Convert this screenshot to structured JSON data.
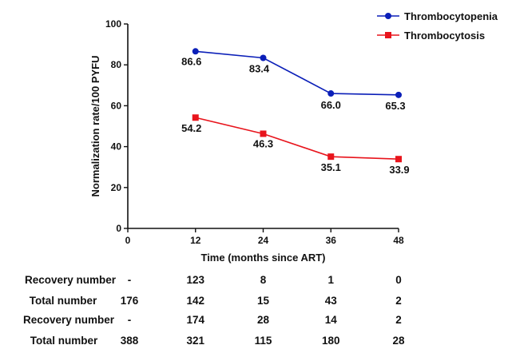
{
  "chart_data": {
    "type": "line",
    "xlabel": "Time (months since ART)",
    "ylabel": "Normalization rate/100 PYFU",
    "x_ticks": [
      "0",
      "12",
      "24",
      "36",
      "48"
    ],
    "y_ticks": [
      "0",
      "20",
      "40",
      "60",
      "80",
      "100"
    ],
    "xlim": [
      0,
      48
    ],
    "ylim": [
      0,
      100
    ],
    "grid": false,
    "legend_position": "top-right",
    "series": [
      {
        "name": "Thrombocytopenia",
        "color": "#0b1fb8",
        "marker": "circle",
        "x": [
          12,
          24,
          36,
          48
        ],
        "y": [
          86.6,
          83.4,
          66.0,
          65.3
        ],
        "labels": [
          "86.6",
          "83.4",
          "66.0",
          "65.3"
        ]
      },
      {
        "name": "Thrombocytosis",
        "color": "#e8141c",
        "marker": "square",
        "x": [
          12,
          24,
          36,
          48
        ],
        "y": [
          54.2,
          46.3,
          35.1,
          33.9
        ],
        "labels": [
          "54.2",
          "46.3",
          "35.1",
          "33.9"
        ]
      }
    ]
  },
  "table": {
    "columns_x": [
      0,
      12,
      24,
      36,
      48
    ],
    "rows": [
      {
        "label": "Recovery number",
        "values": [
          "-",
          "123",
          "8",
          "1",
          "0"
        ]
      },
      {
        "label": "Total number",
        "values": [
          "176",
          "142",
          "15",
          "43",
          "2"
        ]
      },
      {
        "label": "Recovery number",
        "values": [
          "-",
          "174",
          "28",
          "14",
          "2"
        ]
      },
      {
        "label": "Total number",
        "values": [
          "388",
          "321",
          "115",
          "180",
          "28"
        ]
      }
    ]
  }
}
